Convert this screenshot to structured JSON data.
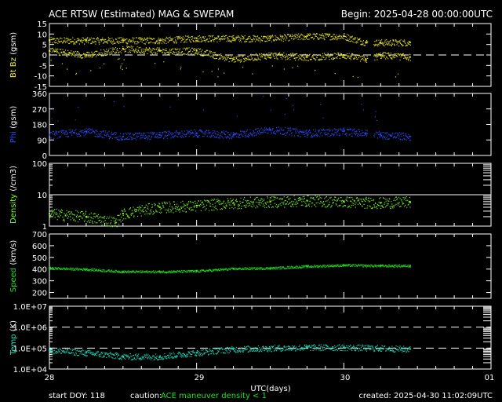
{
  "header": {
    "title": "ACE RTSW (Estimated) MAG & SWEPAM",
    "begin": "Begin: 2025-04-28 00:00:00UTC"
  },
  "footer": {
    "start_doy": "start DOY: 118",
    "caution_label": "caution:",
    "caution_text": "ACE maneuver  density < 1",
    "created": "created: 2025-04-30 11:02:09UTC"
  },
  "chart_data": [
    {
      "type": "scatter",
      "panel": "magnetic-field",
      "ylabel_parts": [
        "Bt",
        " Bz",
        " (gsm)"
      ],
      "ylim": [
        -15,
        15
      ],
      "yticks": [
        "15",
        "10",
        "5",
        "0",
        "-5",
        "-10",
        "-15"
      ],
      "dashed_reference": 0,
      "x_domain_days": [
        28,
        31
      ],
      "data_end_day": 30.45,
      "gap_days": [
        30.16,
        30.2
      ],
      "series": [
        {
          "name": "Bt",
          "color": "#f0f020",
          "x": [
            28.0,
            28.25,
            28.5,
            28.75,
            29.0,
            29.25,
            29.5,
            29.75,
            30.0,
            30.15,
            30.25,
            30.45
          ],
          "y": [
            7,
            7,
            7,
            7,
            8,
            8,
            8,
            9,
            9,
            6,
            6,
            6
          ]
        },
        {
          "name": "Bz",
          "color": "#f0f020",
          "x": [
            28.0,
            28.25,
            28.5,
            28.75,
            29.0,
            29.25,
            29.5,
            29.75,
            30.0,
            30.15,
            30.25,
            30.45
          ],
          "y": [
            2,
            0,
            3,
            2,
            2,
            -2,
            0,
            -1,
            0,
            -2,
            0,
            -1
          ]
        }
      ],
      "color": "#f0f020"
    },
    {
      "type": "scatter",
      "panel": "phi",
      "ylabel": "Phi (gsm)",
      "ylim": [
        0,
        360
      ],
      "yticks": [
        "360",
        "270",
        "180",
        "90",
        "0"
      ],
      "x_domain_days": [
        28,
        31
      ],
      "data_end_day": 30.45,
      "gap_days": [
        30.16,
        30.2
      ],
      "series": [
        {
          "name": "Phi",
          "color": "#2a4cff",
          "x": [
            28.0,
            28.25,
            28.5,
            28.75,
            29.0,
            29.25,
            29.5,
            29.75,
            30.0,
            30.15,
            30.25,
            30.45
          ],
          "y": [
            120,
            140,
            110,
            120,
            130,
            120,
            150,
            130,
            140,
            130,
            120,
            110
          ]
        }
      ],
      "color": "#2a4cff"
    },
    {
      "type": "scatter",
      "panel": "density",
      "ylabel": "Density (/cm3)",
      "scale": "log",
      "ylim": [
        1,
        100
      ],
      "yticks": [
        "100",
        "10",
        "1"
      ],
      "solid_reference": 10,
      "x_domain_days": [
        28,
        31
      ],
      "data_end_day": 30.45,
      "series": [
        {
          "name": "Density",
          "color": "#7cff20",
          "x": [
            28.0,
            28.25,
            28.45,
            28.5,
            28.75,
            29.0,
            29.25,
            29.5,
            29.75,
            30.0,
            30.25,
            30.45
          ],
          "y": [
            2.5,
            2.0,
            1.3,
            2.5,
            4.0,
            4.5,
            5.5,
            6.0,
            6.5,
            6.0,
            5.5,
            6.0
          ]
        }
      ],
      "color": "#7cff20"
    },
    {
      "type": "scatter",
      "panel": "speed",
      "ylabel": "Speed (km/s)",
      "ylim": [
        150,
        700
      ],
      "yticks": [
        "700",
        "600",
        "500",
        "400",
        "300",
        "200"
      ],
      "x_domain_days": [
        28,
        31
      ],
      "data_end_day": 30.45,
      "series": [
        {
          "name": "Speed",
          "color": "#20e020",
          "x": [
            28.0,
            28.25,
            28.5,
            28.75,
            29.0,
            29.25,
            29.5,
            29.75,
            30.0,
            30.25,
            30.45
          ],
          "y": [
            410,
            400,
            380,
            380,
            385,
            405,
            410,
            425,
            435,
            430,
            430
          ]
        }
      ],
      "color": "#20e020"
    },
    {
      "type": "scatter",
      "panel": "temperature",
      "ylabel": "Temp (K)",
      "scale": "log",
      "ylim": [
        10000,
        10000000
      ],
      "yticks": [
        "1.0E+07",
        "1.0E+06",
        "1.0E+05",
        "1.0E+04"
      ],
      "dashed_reference": [
        1000000,
        100000
      ],
      "x_domain_days": [
        28,
        31
      ],
      "data_end_day": 30.45,
      "series": [
        {
          "name": "Temp",
          "color": "#20e0c0",
          "x": [
            28.0,
            28.25,
            28.5,
            28.75,
            29.0,
            29.25,
            29.5,
            29.75,
            30.0,
            30.25,
            30.45
          ],
          "y": [
            80000,
            60000,
            40000,
            40000,
            60000,
            90000,
            100000,
            110000,
            110000,
            100000,
            90000
          ]
        }
      ],
      "color": "#20e0c0"
    }
  ],
  "x_axis": {
    "label": "UTC(days)",
    "tick_labels": [
      "28",
      "29",
      "30",
      "01"
    ]
  }
}
